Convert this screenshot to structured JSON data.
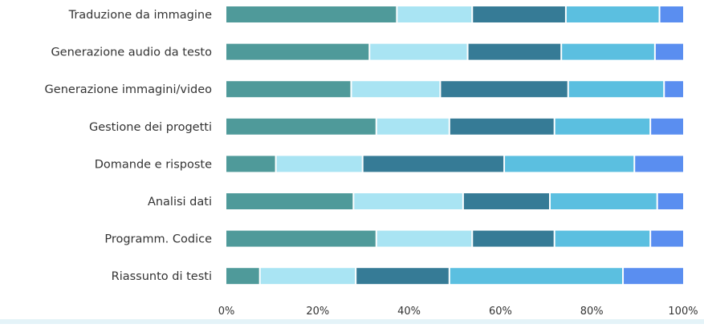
{
  "chart_data": {
    "type": "bar",
    "orientation": "horizontal",
    "stacked": true,
    "percent_stacked": true,
    "categories": [
      "Traduzione da immagine",
      "Generazione audio da testo",
      "Generazione immagini/video",
      "Gestione dei progetti",
      "Domande e risposte",
      "Analisi dati",
      "Programm. Codice",
      "Riassunto di testi"
    ],
    "series": [
      {
        "color": "#4f9a9a",
        "values": [
          37.5,
          31.5,
          27.5,
          33,
          11,
          28,
          33,
          7.5
        ]
      },
      {
        "color": "#a9e4f3",
        "values": [
          16.5,
          21.5,
          19.5,
          16,
          19,
          24,
          21,
          21
        ]
      },
      {
        "color": "#367b96",
        "values": [
          20.5,
          20.5,
          28,
          23,
          31,
          19,
          18,
          20.5
        ]
      },
      {
        "color": "#5bbfe0",
        "values": [
          20.5,
          20.5,
          21,
          21,
          28.5,
          23.5,
          21,
          38
        ]
      },
      {
        "color": "#5a8ef0",
        "values": [
          5,
          6,
          4,
          7,
          10.5,
          5.5,
          7,
          13
        ]
      }
    ],
    "xlim": [
      0,
      100
    ],
    "x_ticks": [
      "0%",
      "20%",
      "40%",
      "60%",
      "80%",
      "100%"
    ],
    "grid": false,
    "legend": "none"
  }
}
